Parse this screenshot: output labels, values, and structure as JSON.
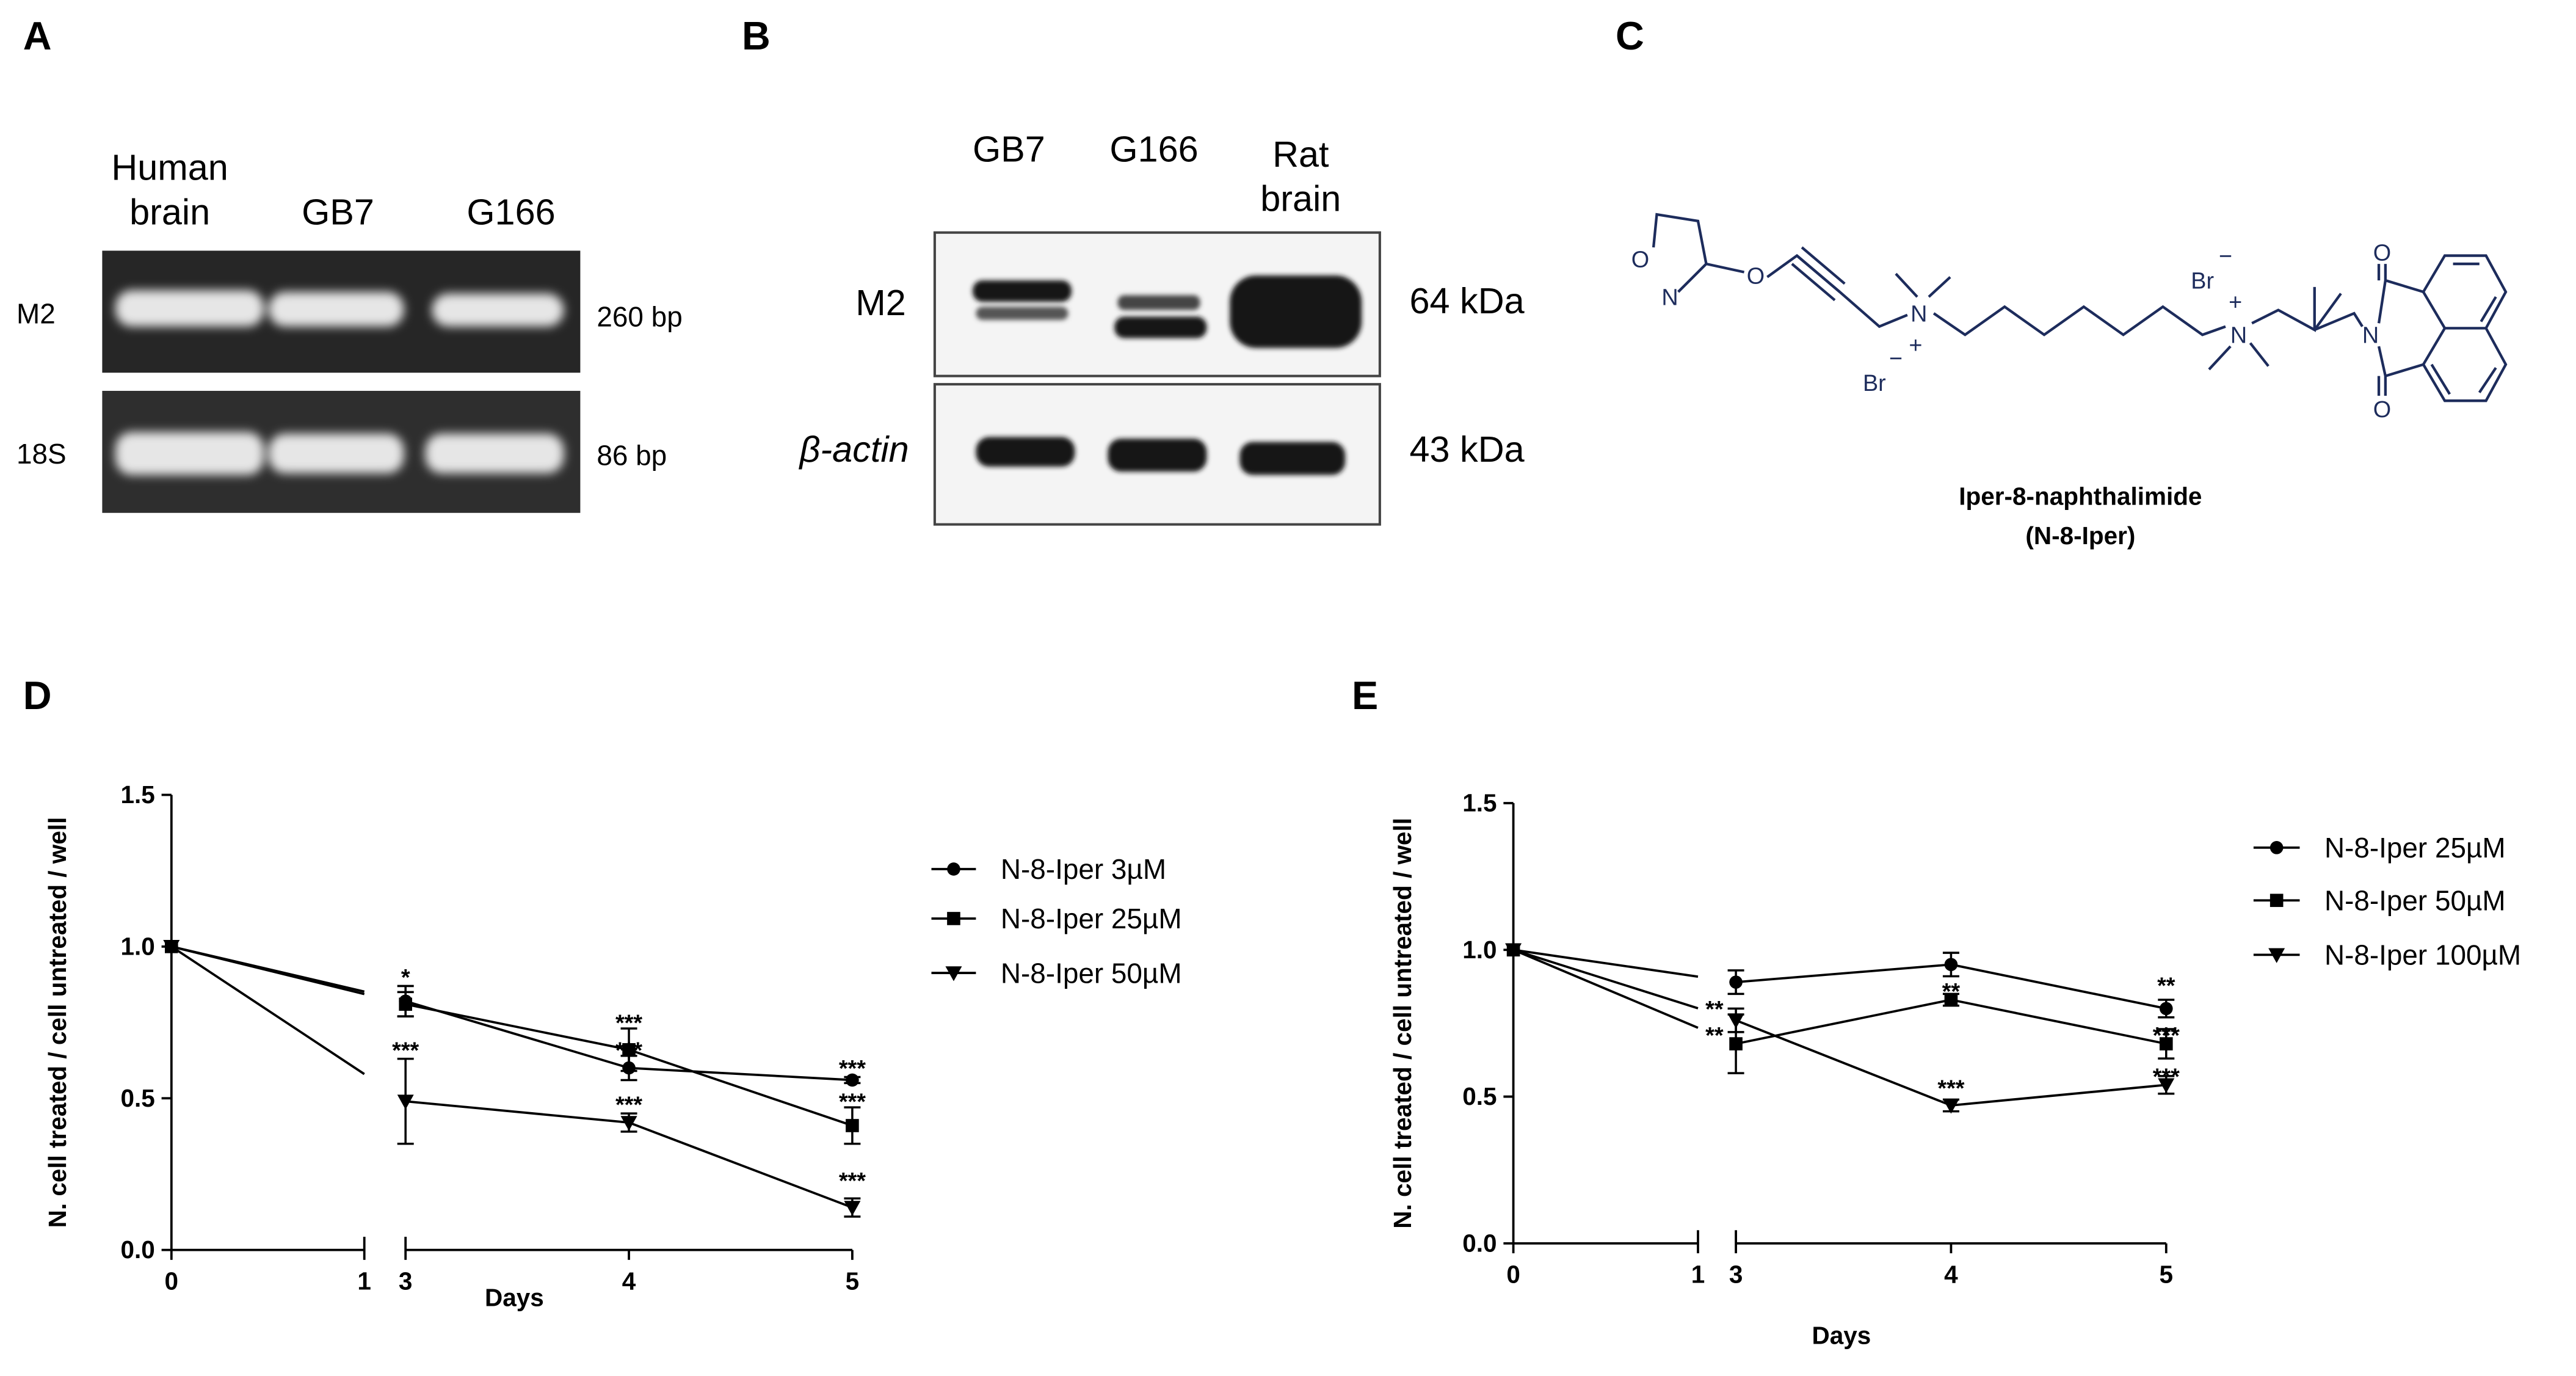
{
  "panels": {
    "a": {
      "label": "A",
      "lanes": [
        "Human brain",
        "GB7",
        "G166"
      ],
      "rows": [
        {
          "name": "M2",
          "size": "260 bp"
        },
        {
          "name": "18S",
          "size": "86 bp"
        }
      ]
    },
    "b": {
      "label": "B",
      "lanes": [
        "GB7",
        "G166",
        "Rat brain"
      ],
      "rows": [
        {
          "name": "M2",
          "size": "64 kDa"
        },
        {
          "name": "β-actin",
          "size": "43 kDa"
        }
      ]
    },
    "c": {
      "label": "C",
      "atoms": [
        "O",
        "N",
        "O",
        "N",
        "+",
        "Br",
        "−",
        "Br",
        "−",
        "N",
        "+",
        "N",
        "O",
        "O"
      ],
      "name": "Iper-8-naphthalimide",
      "abbreviation": "(N-8-Iper)"
    }
  },
  "chart_data": [
    {
      "type": "line",
      "label": "D",
      "x": [
        0,
        3,
        4,
        5
      ],
      "xlim": [
        0,
        5
      ],
      "xbreak": [
        1,
        3
      ],
      "xticks": [
        0,
        1,
        3,
        4,
        5
      ],
      "xlabel": "Days",
      "ylabel": "N. cell treated / cell untreated / well",
      "ylim": [
        0,
        1.5
      ],
      "yticks": [
        {
          "value": 0,
          "label": "0.0"
        },
        0.5,
        {
          "value": 1,
          "label": "1.0"
        },
        1.5
      ],
      "legend": "right",
      "series": [
        {
          "name": "N-8-Iper 3µM",
          "color": "#000000",
          "marker": "circle",
          "values": [
            1.0,
            0.82,
            0.6,
            0.56
          ],
          "errors": [
            0,
            0.05,
            0.04,
            0.01
          ]
        },
        {
          "name": "N-8-Iper 25µM",
          "color": "#000000",
          "marker": "square",
          "values": [
            1.0,
            0.81,
            0.66,
            0.41
          ],
          "errors": [
            0,
            0.04,
            0.07,
            0.06
          ]
        },
        {
          "name": "N-8-Iper 50µM",
          "color": "#000000",
          "marker": "triangle-down",
          "values": [
            1.0,
            0.49,
            0.42,
            0.14
          ],
          "errors": [
            0,
            0.14,
            0.03,
            0.03
          ]
        }
      ],
      "annotations": [
        {
          "text": "*",
          "x": 3,
          "y": 0.9
        },
        {
          "text": "***",
          "x": 3,
          "y": 0.66
        },
        {
          "text": "***",
          "x": 4,
          "y": 0.75
        },
        {
          "text": "***",
          "x": 4,
          "y": 0.66
        },
        {
          "text": "***",
          "x": 4,
          "y": 0.48
        },
        {
          "text": "***",
          "x": 5,
          "y": 0.6
        },
        {
          "text": "***",
          "x": 5,
          "y": 0.49
        },
        {
          "text": "***",
          "x": 5,
          "y": 0.23
        }
      ]
    },
    {
      "type": "line",
      "label": "E",
      "x": [
        0,
        3,
        4,
        5
      ],
      "xlim": [
        0,
        5
      ],
      "xbreak": [
        1,
        3
      ],
      "xticks": [
        0,
        1,
        3,
        4,
        5
      ],
      "xlabel": "Days",
      "ylabel": "N. cell treated / cell untreated / well",
      "ylim": [
        0,
        1.5
      ],
      "yticks": [
        {
          "value": 0,
          "label": "0.0"
        },
        0.5,
        {
          "value": 1,
          "label": "1.0"
        },
        1.5
      ],
      "legend": "right",
      "series": [
        {
          "name": "N-8-Iper 25µM",
          "color": "#000000",
          "marker": "circle",
          "values": [
            1.0,
            0.89,
            0.95,
            0.8
          ],
          "errors": [
            0,
            0.04,
            0.04,
            0.03
          ]
        },
        {
          "name": "N-8-Iper 50µM",
          "color": "#000000",
          "marker": "square",
          "values": [
            1.0,
            0.68,
            0.83,
            0.68
          ],
          "errors": [
            0,
            0.1,
            0.02,
            0.05
          ]
        },
        {
          "name": "N-8-Iper 100µM",
          "color": "#000000",
          "marker": "triangle-down",
          "values": [
            1.0,
            0.76,
            0.47,
            0.54
          ],
          "errors": [
            0,
            0.04,
            0.02,
            0.03
          ]
        }
      ],
      "annotations": [
        {
          "text": "**",
          "x": 2.9,
          "y": 0.8
        },
        {
          "text": "**",
          "x": 2.9,
          "y": 0.71
        },
        {
          "text": "**",
          "x": 4,
          "y": 0.86
        },
        {
          "text": "***",
          "x": 4,
          "y": 0.53
        },
        {
          "text": "**",
          "x": 5,
          "y": 0.88
        },
        {
          "text": "***",
          "x": 5,
          "y": 0.71
        },
        {
          "text": "***",
          "x": 5,
          "y": 0.57
        }
      ]
    }
  ]
}
